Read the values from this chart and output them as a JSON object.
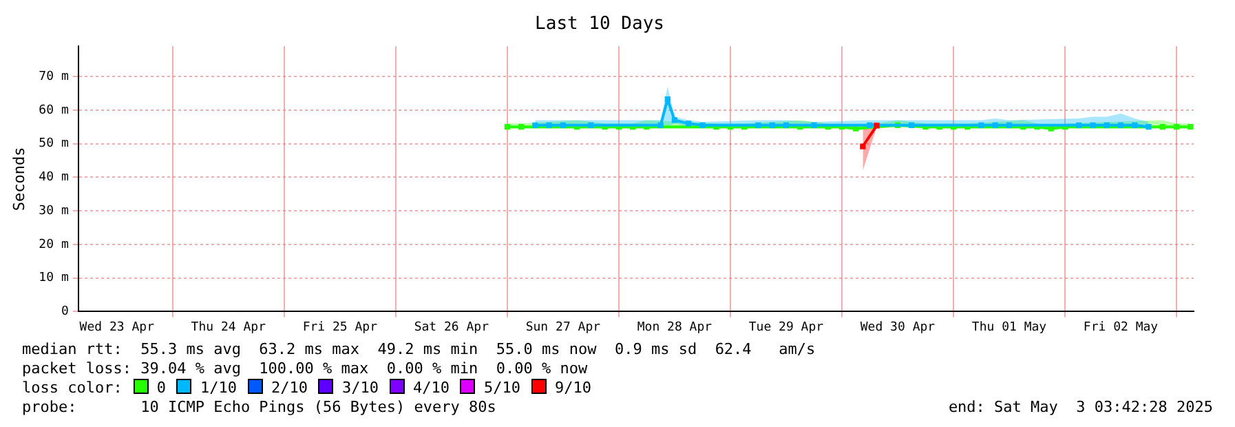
{
  "chart_data": {
    "type": "line",
    "title": "Last 10 Days",
    "ylabel": "Seconds",
    "legend_title": "loss color:",
    "legend": "bottom",
    "grid": true,
    "marker": "square",
    "line_style": "solid",
    "xlim": [
      "2025-04-23T03:42",
      "2025-05-03T03:42"
    ],
    "xticks": [
      {
        "value": "2025-04-23T12:00",
        "label": "Wed 23 Apr"
      },
      {
        "value": "2025-04-24T00:00",
        "label": null
      },
      {
        "value": "2025-04-24T12:00",
        "label": "Thu 24 Apr"
      },
      {
        "value": "2025-04-25T00:00",
        "label": null
      },
      {
        "value": "2025-04-25T12:00",
        "label": "Fri 25 Apr"
      },
      {
        "value": "2025-04-26T00:00",
        "label": null
      },
      {
        "value": "2025-04-26T12:00",
        "label": "Sat 26 Apr"
      },
      {
        "value": "2025-04-27T00:00",
        "label": null
      },
      {
        "value": "2025-04-27T12:00",
        "label": "Sun 27 Apr"
      },
      {
        "value": "2025-04-28T00:00",
        "label": null
      },
      {
        "value": "2025-04-28T12:00",
        "label": "Mon 28 Apr"
      },
      {
        "value": "2025-04-29T00:00",
        "label": null
      },
      {
        "value": "2025-04-29T12:00",
        "label": "Tue 29 Apr"
      },
      {
        "value": "2025-04-30T00:00",
        "label": null
      },
      {
        "value": "2025-04-30T12:00",
        "label": "Wed 30 Apr"
      },
      {
        "value": "2025-05-01T00:00",
        "label": null
      },
      {
        "value": "2025-05-01T12:00",
        "label": "Thu 01 May"
      },
      {
        "value": "2025-05-02T00:00",
        "label": null
      },
      {
        "value": "2025-05-02T12:00",
        "label": "Fri 02 May"
      },
      {
        "value": "2025-05-03T00:00",
        "label": null
      }
    ],
    "ylim": [
      0,
      79
    ],
    "yticks": [
      {
        "value": 0,
        "label": "0"
      },
      {
        "value": 10,
        "label": "10 m"
      },
      {
        "value": 20,
        "label": "20 m"
      },
      {
        "value": 30,
        "label": "30 m"
      },
      {
        "value": 40,
        "label": "40 m"
      },
      {
        "value": 50,
        "label": "50 m"
      },
      {
        "value": 60,
        "label": "60 m"
      },
      {
        "value": 70,
        "label": "70 m"
      }
    ],
    "series": [
      {
        "name": "0",
        "color": "#26ff00",
        "x": [
          "2025-04-27T00:00",
          "2025-04-27T03:00",
          "2025-04-27T15:00",
          "2025-04-27T21:00",
          "2025-04-28T00:00",
          "2025-04-28T03:00",
          "2025-04-28T06:00",
          "2025-04-28T21:00",
          "2025-04-29T00:00",
          "2025-04-29T03:00",
          "2025-04-29T15:00",
          "2025-04-29T21:00",
          "2025-04-30T00:00",
          "2025-04-30T03:00",
          "2025-04-30T12:00",
          "2025-04-30T18:00",
          "2025-04-30T21:00",
          "2025-05-01T00:00",
          "2025-05-01T03:00",
          "2025-05-01T15:00",
          "2025-05-01T18:00",
          "2025-05-01T21:00",
          "2025-05-02T00:00",
          "2025-05-02T21:00",
          "2025-05-03T00:00",
          "2025-05-03T03:00"
        ],
        "values": [
          55,
          55,
          55,
          55,
          55,
          55,
          55,
          55,
          55,
          55,
          55,
          55,
          55,
          54.5,
          55.5,
          55,
          55,
          55,
          55,
          55,
          55,
          54.5,
          55,
          55,
          55,
          55
        ],
        "lower": [
          54.5,
          54.5,
          54.5,
          54.5,
          54.5,
          54.5,
          54.5,
          54.5,
          54.5,
          54.5,
          54.5,
          54.5,
          54.5,
          54,
          55,
          54.5,
          54.5,
          54.5,
          54.5,
          54.5,
          54.5,
          54,
          54.5,
          54.5,
          54.5,
          54.5
        ],
        "upper": [
          56,
          56,
          57,
          56,
          56,
          56,
          57,
          56,
          56,
          56,
          57,
          56,
          56,
          55,
          57,
          56,
          56,
          56,
          56,
          57,
          56,
          55,
          56,
          57,
          56,
          56
        ]
      },
      {
        "name": "1/10",
        "color": "#00b8ff",
        "x": [
          "2025-04-27T06:00",
          "2025-04-27T09:00",
          "2025-04-27T12:00",
          "2025-04-27T18:00",
          "2025-04-28T09:00",
          "2025-04-28T10:30",
          "2025-04-28T12:00",
          "2025-04-28T15:00",
          "2025-04-28T18:00",
          "2025-04-29T06:00",
          "2025-04-29T09:00",
          "2025-04-29T12:00",
          "2025-04-29T18:00",
          "2025-04-30T06:00",
          "2025-04-30T15:00",
          "2025-05-01T06:00",
          "2025-05-01T09:00",
          "2025-05-01T12:00",
          "2025-05-02T03:00",
          "2025-05-02T06:00",
          "2025-05-02T09:00",
          "2025-05-02T12:00",
          "2025-05-02T15:00",
          "2025-05-02T18:00"
        ],
        "values": [
          55.5,
          55.5,
          55.5,
          55.5,
          55.5,
          63.2,
          57,
          56,
          55.5,
          55.5,
          55.5,
          55.5,
          55.5,
          55.5,
          55.5,
          55.5,
          55.5,
          55.5,
          55.5,
          55.5,
          55.5,
          55.5,
          55.5,
          55
        ],
        "lower": [
          55,
          55,
          55,
          55,
          55,
          55,
          56,
          55,
          55,
          55,
          55,
          55,
          55,
          55,
          55,
          55,
          55,
          55,
          55,
          55,
          55,
          55,
          55,
          54.5
        ],
        "upper": [
          57,
          57,
          57,
          57,
          57,
          67,
          58,
          57,
          56.5,
          57,
          57,
          57,
          56.5,
          57,
          57,
          57,
          57.5,
          57,
          57.5,
          58,
          58,
          59,
          57.5,
          56.5
        ]
      },
      {
        "name": "2/10",
        "color": "#0059ff"
      },
      {
        "name": "3/10",
        "color": "#5e00ff"
      },
      {
        "name": "4/10",
        "color": "#7e00ff"
      },
      {
        "name": "5/10",
        "color": "#dd00ff"
      },
      {
        "name": "9/10",
        "color": "#ff0000",
        "x": [
          "2025-04-30T04:30",
          "2025-04-30T07:30"
        ],
        "values": [
          49.2,
          55.4
        ],
        "lower": [
          42,
          55
        ],
        "upper": [
          55,
          56.5
        ]
      }
    ],
    "annotations": [
      "median rtt:  55.3 ms avg  63.2 ms max  49.2 ms min  55.0 ms now  0.9 ms sd  62.4   am/s",
      "packet loss: 39.04 % avg  100.00 % max  0.00 % min  0.00 % now",
      "probe:       10 ICMP Echo Pings (56 Bytes) every 80s",
      "end: Sat May  3 03:42:28 2025"
    ]
  }
}
